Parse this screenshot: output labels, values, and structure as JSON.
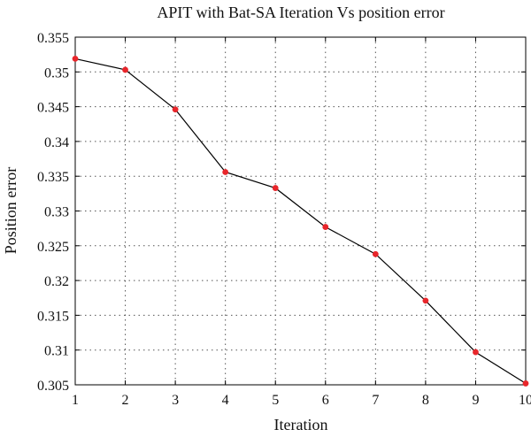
{
  "chart_data": {
    "type": "line",
    "title": "APIT with Bat-SA Iteration Vs position error",
    "xlabel": "Iteration",
    "ylabel": "Position error",
    "xlim": [
      1,
      10
    ],
    "ylim": [
      0.305,
      0.355
    ],
    "xticks": [
      1,
      2,
      3,
      4,
      5,
      6,
      7,
      8,
      9,
      10
    ],
    "yticks": [
      "0.305",
      "0.31",
      "0.315",
      "0.32",
      "0.325",
      "0.33",
      "0.335",
      "0.34",
      "0.345",
      "0.35",
      "0.355"
    ],
    "grid": true,
    "series": [
      {
        "x": [
          1,
          2,
          3,
          4,
          5,
          6,
          7,
          8,
          9,
          10
        ],
        "values": [
          0.3519,
          0.3503,
          0.3446,
          0.3356,
          0.3333,
          0.3277,
          0.3238,
          0.3171,
          0.3097,
          0.3052
        ],
        "line_color": "#000000",
        "marker_color": "#e8262b"
      }
    ]
  }
}
